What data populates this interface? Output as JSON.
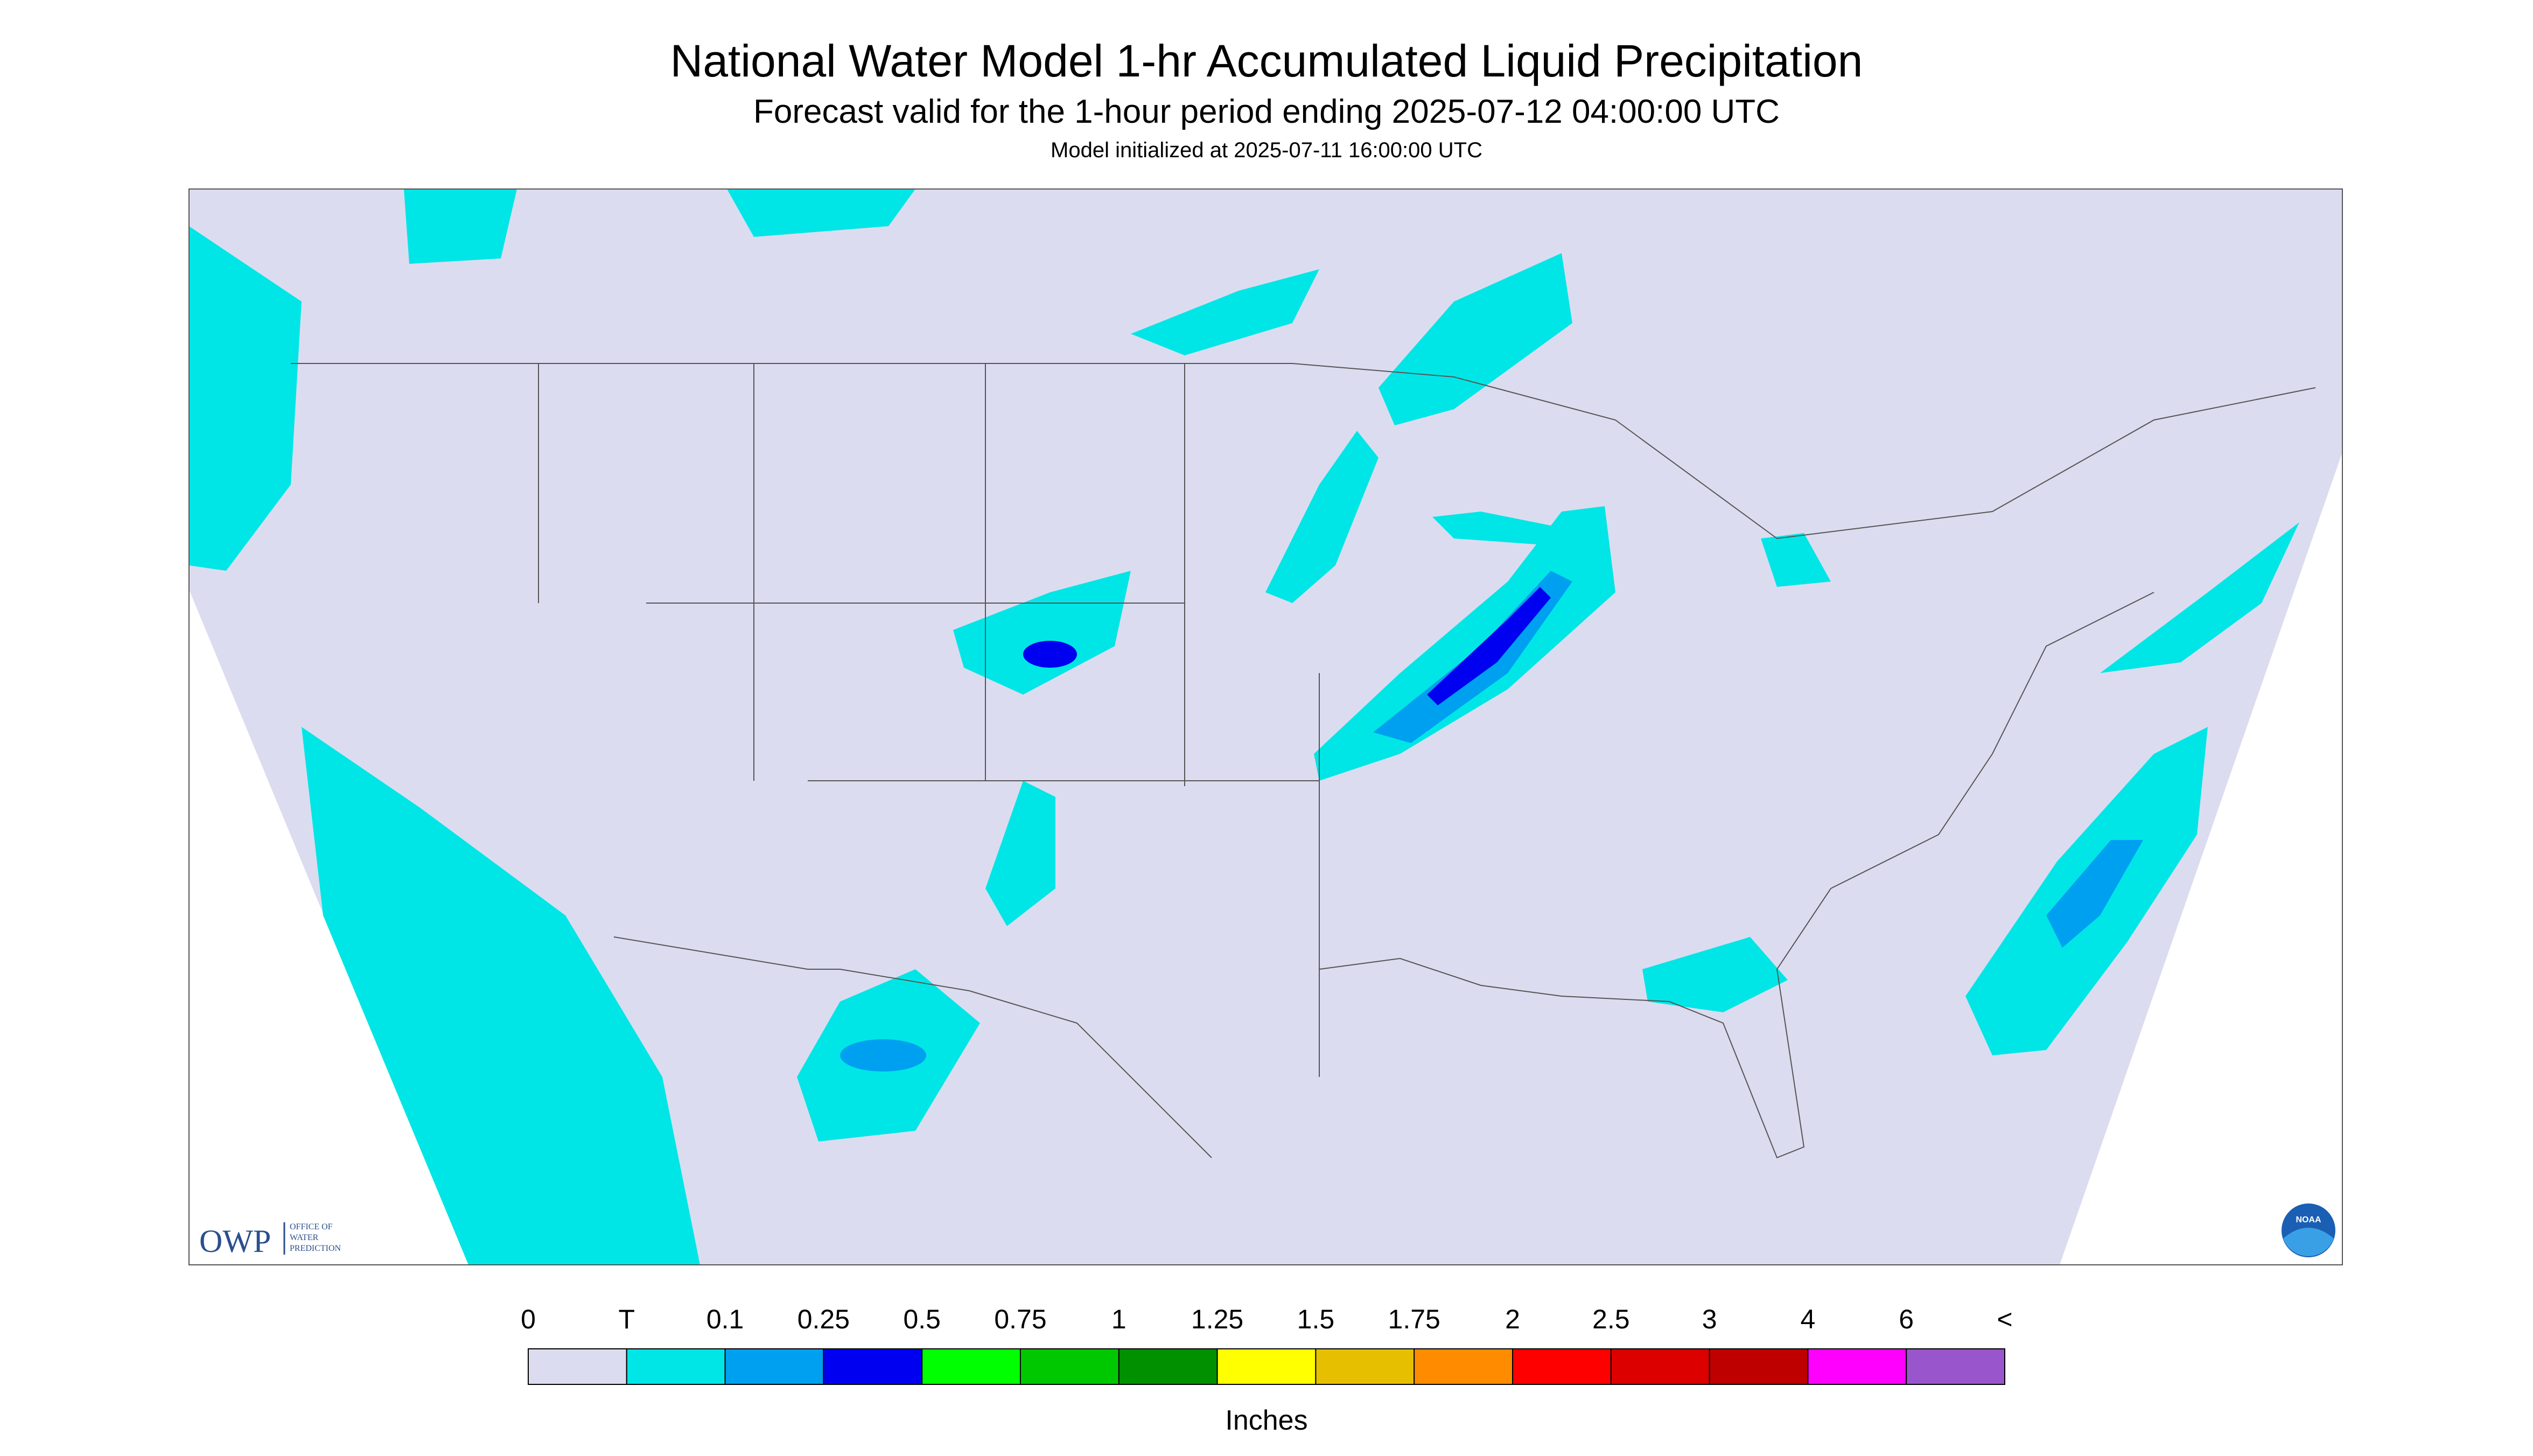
{
  "header": {
    "title": "National Water Model 1-hr Accumulated Liquid Precipitation",
    "subtitle": "Forecast valid for the 1-hour period ending 2025-07-12 04:00:00 UTC",
    "note": "Model initialized at 2025-07-11 16:00:00 UTC"
  },
  "logos": {
    "owp": "OWP",
    "owp_text": [
      "OFFICE OF",
      "WATER",
      "PREDICTION"
    ],
    "noaa": "NOAA"
  },
  "legend": {
    "labels": [
      "0",
      "T",
      "0.1",
      "0.25",
      "0.5",
      "0.75",
      "1",
      "1.25",
      "1.5",
      "1.75",
      "2",
      "2.5",
      "3",
      "4",
      "6",
      "<"
    ],
    "colors": [
      "#dcdcf0",
      "#00e6e6",
      "#00a0f0",
      "#0000f0",
      "#00ff00",
      "#00c800",
      "#009000",
      "#ffff00",
      "#e6c000",
      "#ff8c00",
      "#ff0000",
      "#dc0000",
      "#be0000",
      "#ff00ff",
      "#9955cc"
    ],
    "unit": "Inches"
  }
}
